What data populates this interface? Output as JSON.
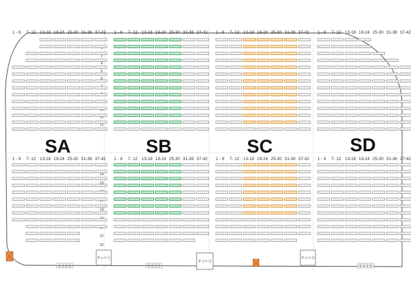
{
  "column_headers": [
    "1 - 6",
    "7- 12",
    "13-18",
    "19-24",
    "25-30",
    "31-36",
    "37-42"
  ],
  "row_numbers_top": [
    "1",
    "2",
    "3",
    "4",
    "5",
    "6",
    "7",
    "8",
    "9",
    "10",
    "11",
    "12"
  ],
  "row_numbers_bottom": [
    "13",
    "14",
    "15",
    "16",
    "17",
    "18",
    "19",
    "20",
    "21",
    "22"
  ],
  "sections": [
    {
      "id": "sa",
      "label": "SA"
    },
    {
      "id": "sb",
      "label": "SB"
    },
    {
      "id": "sc",
      "label": "SC"
    },
    {
      "id": "sd",
      "label": "SD"
    }
  ],
  "stands": [
    {
      "id": "stand-1",
      "label": "テント①"
    },
    {
      "id": "stand-2",
      "label": "テント②"
    },
    {
      "id": "stand-3",
      "label": "テント③"
    }
  ],
  "colors": {
    "highlight_green": "#2f9e5a",
    "highlight_orange": "#d9902a",
    "marker_orange": "#f08a3c",
    "outline": "#444444"
  }
}
